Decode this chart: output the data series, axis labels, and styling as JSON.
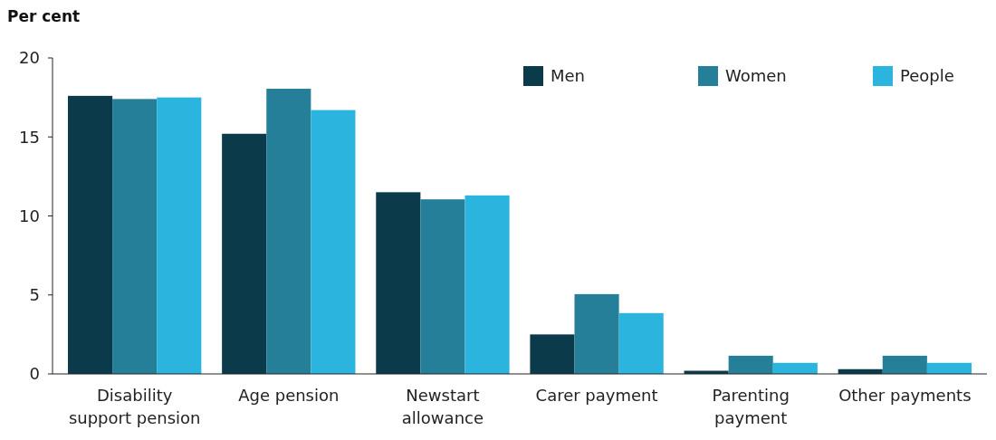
{
  "chart_data": {
    "type": "bar",
    "ylabel": "Per cent",
    "categories": [
      "Disability support pension",
      "Age pension",
      "Newstart allowance",
      "Carer payment",
      "Parenting payment",
      "Other payments"
    ],
    "series": [
      {
        "name": "Men",
        "color": "#0b3a4b",
        "values": [
          17.6,
          15.2,
          11.5,
          2.5,
          0.2,
          0.3
        ]
      },
      {
        "name": "Women",
        "color": "#267f99",
        "values": [
          17.4,
          18.05,
          11.05,
          5.05,
          1.15,
          1.15
        ]
      },
      {
        "name": "People",
        "color": "#2bb5de",
        "values": [
          17.5,
          16.7,
          11.3,
          3.85,
          0.7,
          0.7
        ]
      }
    ],
    "ylim": [
      0,
      20
    ],
    "yticks": [
      0,
      5,
      10,
      15,
      20
    ],
    "legend": "top right"
  }
}
